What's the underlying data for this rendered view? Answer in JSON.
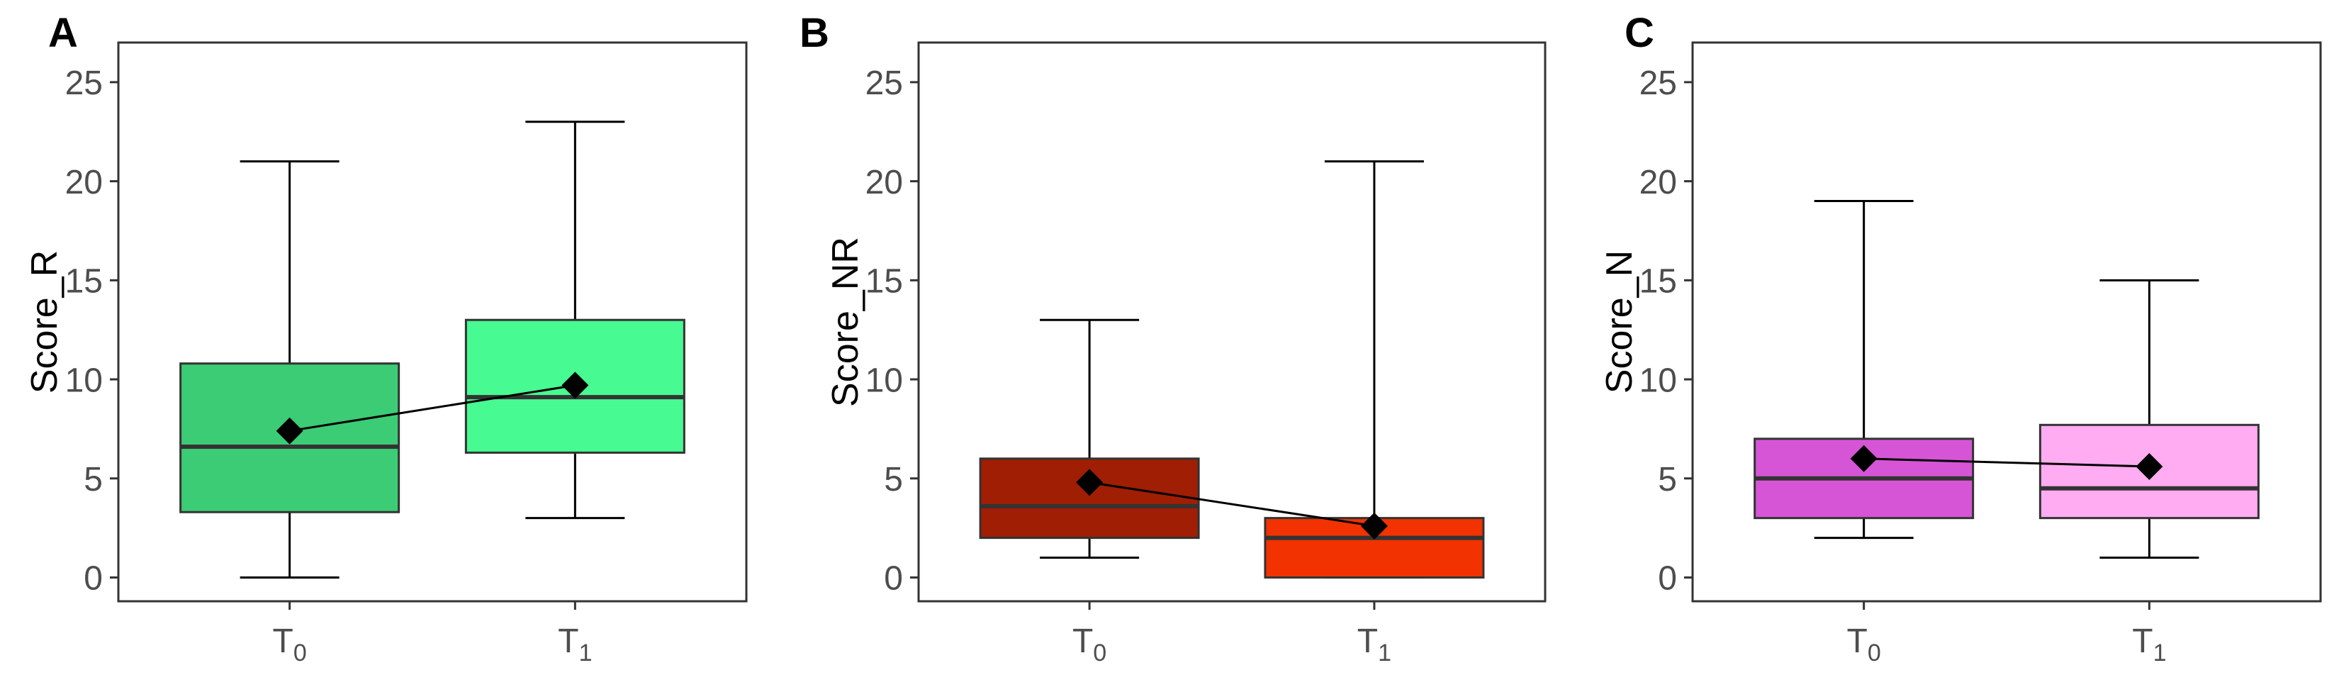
{
  "chart_data": [
    {
      "type": "box",
      "panel": "A",
      "ylabel": "Score_R",
      "ylim": [
        -1.2,
        27
      ],
      "yticks": [
        0,
        5,
        10,
        15,
        20,
        25
      ],
      "categories": [
        "T0",
        "T1"
      ],
      "category_labels": [
        {
          "base": "T",
          "sub": "0"
        },
        {
          "base": "T",
          "sub": "1"
        }
      ],
      "boxes": [
        {
          "category": "T0",
          "whisker_low": 0,
          "q1": 3.3,
          "median": 6.6,
          "q3": 10.8,
          "whisker_high": 21,
          "mean": 7.4,
          "fill": "#3bcc75"
        },
        {
          "category": "T1",
          "whisker_low": 3,
          "q1": 6.3,
          "median": 9.1,
          "q3": 13,
          "whisker_high": 23,
          "mean": 9.7,
          "fill": "#47fa91"
        }
      ],
      "grid": false
    },
    {
      "type": "box",
      "panel": "B",
      "ylabel": "Score_NR",
      "ylim": [
        -1.2,
        27
      ],
      "yticks": [
        0,
        5,
        10,
        15,
        20,
        25
      ],
      "categories": [
        "T0",
        "T1"
      ],
      "category_labels": [
        {
          "base": "T",
          "sub": "0"
        },
        {
          "base": "T",
          "sub": "1"
        }
      ],
      "boxes": [
        {
          "category": "T0",
          "whisker_low": 1,
          "q1": 2,
          "median": 3.6,
          "q3": 6,
          "whisker_high": 13,
          "mean": 4.8,
          "fill": "#a01e03"
        },
        {
          "category": "T1",
          "whisker_low": 0,
          "q1": 0,
          "median": 2,
          "q3": 3,
          "whisker_high": 21,
          "mean": 2.6,
          "fill": "#f23200"
        }
      ],
      "grid": false
    },
    {
      "type": "box",
      "panel": "C",
      "ylabel": "Score_N",
      "ylim": [
        -1.2,
        27
      ],
      "yticks": [
        0,
        5,
        10,
        15,
        20,
        25
      ],
      "categories": [
        "T0",
        "T1"
      ],
      "category_labels": [
        {
          "base": "T",
          "sub": "0"
        },
        {
          "base": "T",
          "sub": "1"
        }
      ],
      "boxes": [
        {
          "category": "T0",
          "whisker_low": 2,
          "q1": 3,
          "median": 5,
          "q3": 7,
          "whisker_high": 19,
          "mean": 6,
          "fill": "#d655d6"
        },
        {
          "category": "T1",
          "whisker_low": 1,
          "q1": 3,
          "median": 4.5,
          "q3": 7.7,
          "whisker_high": 15,
          "mean": 5.6,
          "fill": "#ffacf2"
        }
      ],
      "grid": false
    }
  ]
}
